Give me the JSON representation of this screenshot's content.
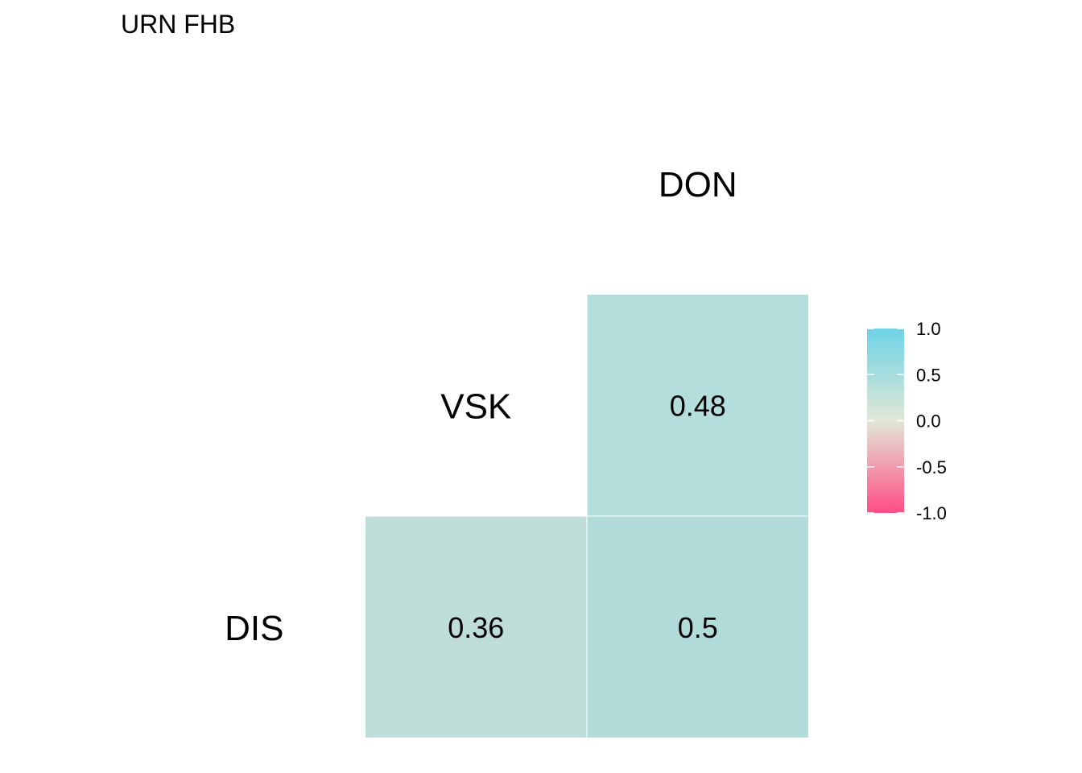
{
  "chart_data": {
    "type": "heatmap",
    "title": "URN FHB",
    "variables": [
      "DIS",
      "VSK",
      "DON"
    ],
    "cells": [
      {
        "row": "VSK",
        "col": "DON",
        "value": 0.48,
        "label": "0.48",
        "color": "#b3dedb"
      },
      {
        "row": "DIS",
        "col": "VSK",
        "value": 0.36,
        "label": "0.36",
        "color": "#bfded9"
      },
      {
        "row": "DIS",
        "col": "DON",
        "value": 0.5,
        "label": "0.5",
        "color": "#b1dcda"
      }
    ],
    "legend": {
      "placement": "right",
      "range": [
        -1.0,
        1.0
      ],
      "ticks": [
        "1.0",
        "0.5",
        "0.0",
        "-0.5",
        "-1.0"
      ],
      "colors": {
        "low": "#ff4d85",
        "mid": "#e1e8d6",
        "high": "#6dd3e6"
      }
    }
  }
}
